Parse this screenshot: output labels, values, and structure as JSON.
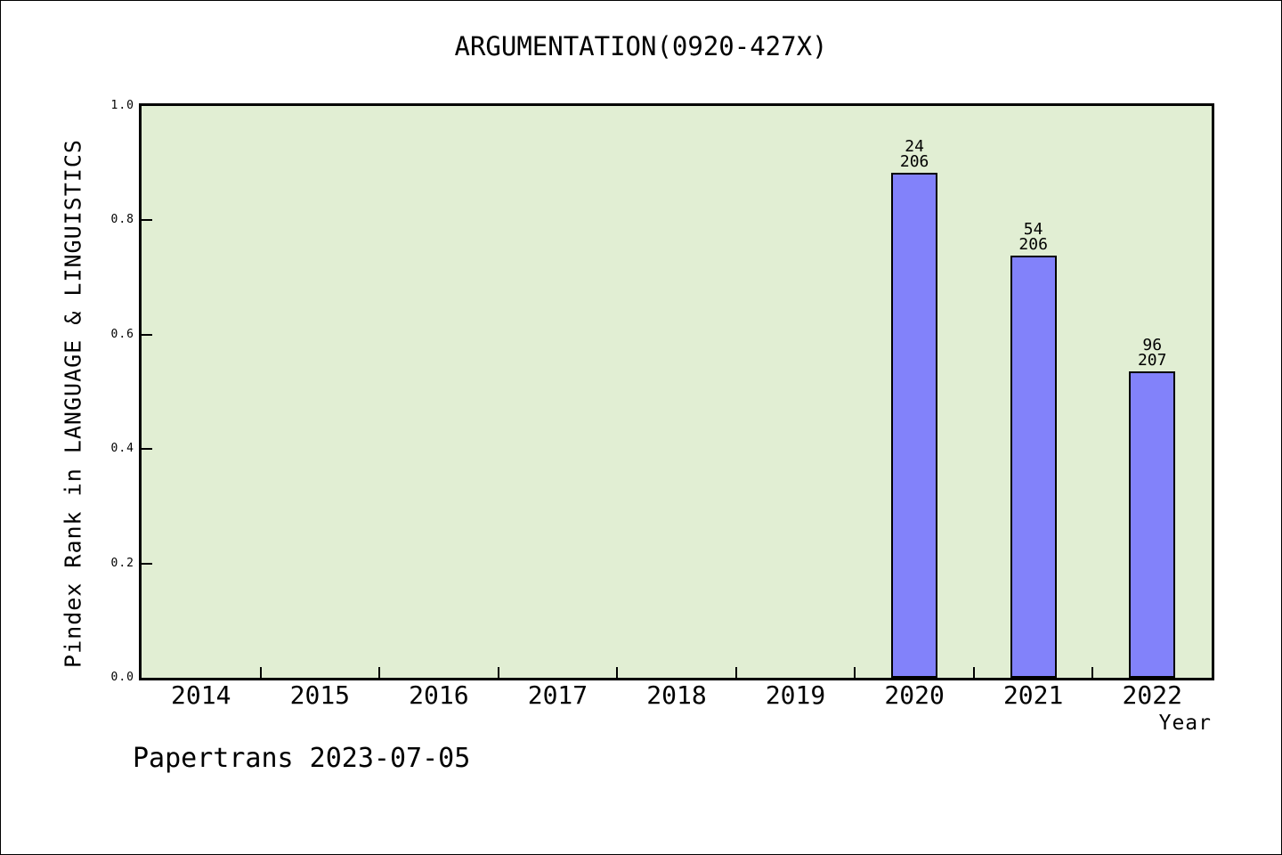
{
  "watermark": "Papertrans 2023-07-05",
  "chart_data": {
    "type": "bar",
    "title": "ARGUMENTATION(0920-427X)",
    "xlabel": "Year",
    "ylabel": "Pindex Rank in LANGUAGE & LINGUISTICS",
    "categories": [
      "2014",
      "2015",
      "2016",
      "2017",
      "2018",
      "2019",
      "2020",
      "2021",
      "2022"
    ],
    "values": [
      null,
      null,
      null,
      null,
      null,
      null,
      0.883,
      0.738,
      0.536
    ],
    "annotations": [
      {
        "category": "2020",
        "rank": "24",
        "total": "206"
      },
      {
        "category": "2021",
        "rank": "54",
        "total": "206"
      },
      {
        "category": "2022",
        "rank": "96",
        "total": "207"
      }
    ],
    "ylim": [
      0.0,
      1.0
    ],
    "yticks": [
      0.0,
      0.2,
      0.4,
      0.6,
      0.8,
      1.0
    ],
    "grid": false,
    "legend_position": "none",
    "colors": {
      "bar_fill": "#8282fa",
      "bar_border": "#000000",
      "plot_background": "#e1eed3",
      "frame": "#000000",
      "text": "#000000"
    }
  }
}
